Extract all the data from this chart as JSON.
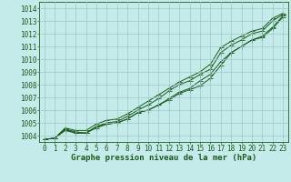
{
  "xlabel": "Graphe pression niveau de la mer (hPa)",
  "x": [
    0,
    1,
    2,
    3,
    4,
    5,
    6,
    7,
    8,
    9,
    10,
    11,
    12,
    13,
    14,
    15,
    16,
    17,
    18,
    19,
    20,
    21,
    22,
    23
  ],
  "line1": [
    1003.7,
    1003.8,
    1004.5,
    1004.3,
    1004.2,
    1004.7,
    1005.0,
    1005.1,
    1005.5,
    1006.0,
    1006.4,
    1006.9,
    1007.5,
    1008.0,
    1008.3,
    1008.8,
    1009.2,
    1010.5,
    1011.1,
    1011.5,
    1012.0,
    1012.2,
    1013.0,
    1013.5
  ],
  "line2": [
    1003.7,
    1003.8,
    1004.5,
    1004.2,
    1004.2,
    1004.7,
    1004.9,
    1005.0,
    1005.3,
    1005.8,
    1006.0,
    1006.4,
    1006.9,
    1007.4,
    1007.7,
    1008.3,
    1008.8,
    1009.8,
    1010.5,
    1011.0,
    1011.5,
    1011.8,
    1012.5,
    1013.4
  ],
  "line3": [
    1003.7,
    1003.8,
    1004.4,
    1004.2,
    1004.2,
    1004.6,
    1004.9,
    1005.0,
    1005.3,
    1005.8,
    1006.0,
    1006.4,
    1006.8,
    1007.3,
    1007.6,
    1007.9,
    1008.5,
    1009.5,
    1010.5,
    1011.0,
    1011.5,
    1011.7,
    1012.4,
    1013.3
  ],
  "line4": [
    1003.7,
    1003.8,
    1004.6,
    1004.4,
    1004.4,
    1004.9,
    1005.2,
    1005.3,
    1005.7,
    1006.2,
    1006.7,
    1007.2,
    1007.7,
    1008.2,
    1008.6,
    1009.0,
    1009.6,
    1010.9,
    1011.4,
    1011.8,
    1012.2,
    1012.4,
    1013.2,
    1013.6
  ],
  "ylim": [
    1003.5,
    1014.5
  ],
  "xlim": [
    -0.5,
    23.5
  ],
  "yticks": [
    1004,
    1005,
    1006,
    1007,
    1008,
    1009,
    1010,
    1011,
    1012,
    1013,
    1014
  ],
  "xticks": [
    0,
    1,
    2,
    3,
    4,
    5,
    6,
    7,
    8,
    9,
    10,
    11,
    12,
    13,
    14,
    15,
    16,
    17,
    18,
    19,
    20,
    21,
    22,
    23
  ],
  "line_color": "#1a5c1a",
  "bg_color": "#c5eaea",
  "grid_color": "#a0c8c8",
  "tick_fontsize": 5.5,
  "label_fontsize": 6.5,
  "marker": "P",
  "marker_size": 2.0,
  "linewidth": 0.7
}
